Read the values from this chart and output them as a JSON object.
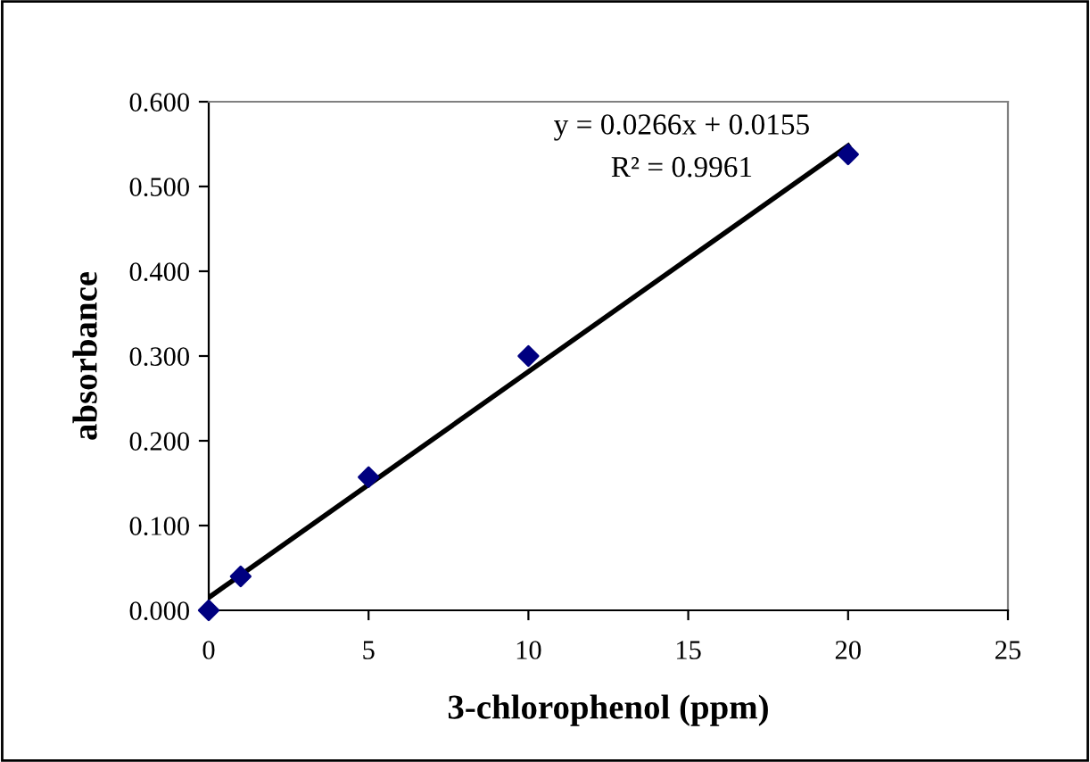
{
  "chart_data": {
    "type": "scatter",
    "xlabel": "3-chlorophenol (ppm)",
    "ylabel": "absorbance",
    "x": [
      0,
      1,
      5,
      10,
      20
    ],
    "series": [
      {
        "color": "#000080",
        "marker": "diamond",
        "values": [
          0.0,
          0.04,
          0.157,
          0.3,
          0.538
        ]
      },
      {
        "type": "line",
        "color": "#000000",
        "marker": "none",
        "line_style": "solid",
        "x": [
          0,
          20
        ],
        "values": [
          0.015,
          0.548
        ]
      }
    ],
    "annotations": [
      "y = 0.0266x + 0.0155",
      "R² = 0.9961"
    ],
    "xlim": [
      0,
      25
    ],
    "xticks": [
      0,
      5,
      10,
      15,
      20,
      25
    ],
    "ylim": [
      0,
      0.6
    ],
    "yticks": [
      {
        "value": 0,
        "label": "0.000"
      },
      {
        "value": 0.1,
        "label": "0.100"
      },
      {
        "value": 0.2,
        "label": "0.200"
      },
      {
        "value": 0.3,
        "label": "0.300"
      },
      {
        "value": 0.4,
        "label": "0.400"
      },
      {
        "value": 0.5,
        "label": "0.500"
      },
      {
        "value": 0.6,
        "label": "0.600"
      }
    ],
    "grid": false,
    "legend": false
  }
}
